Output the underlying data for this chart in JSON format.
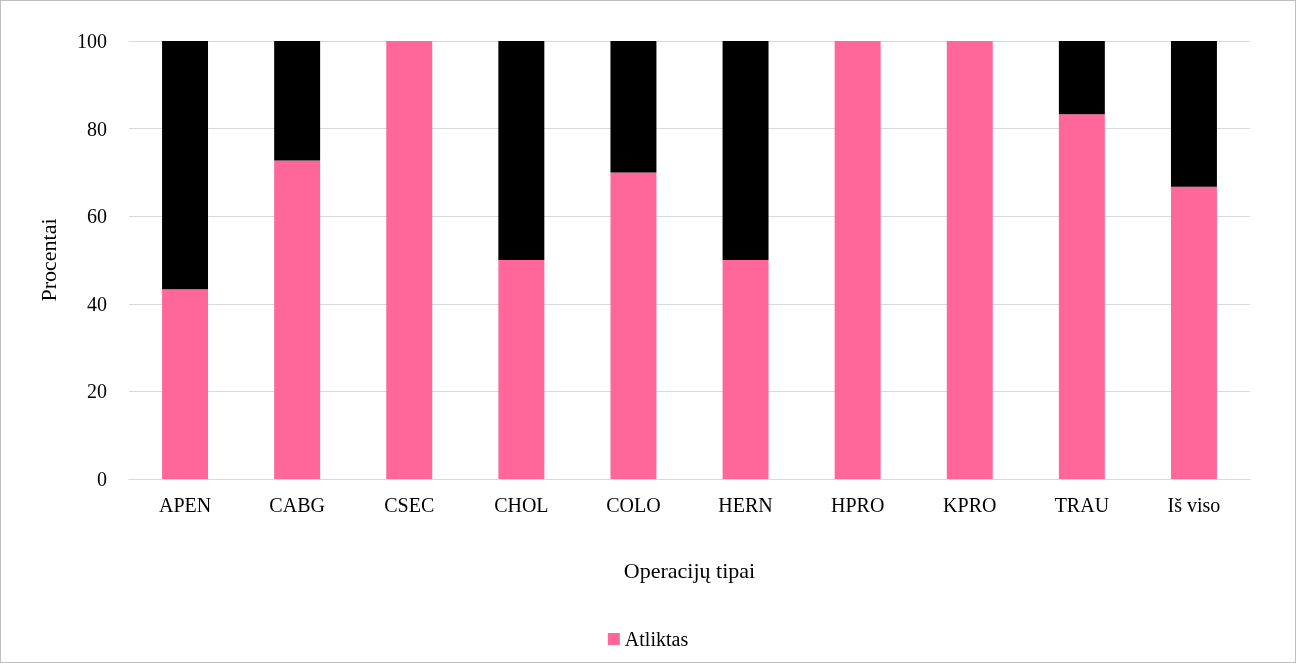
{
  "chart_data": {
    "type": "bar",
    "stacked": true,
    "xlabel": "Operacijų tipai",
    "ylabel": "Procentai",
    "categories": [
      "APEN",
      "CABG",
      "CSEC",
      "CHOL",
      "COLO",
      "HERN",
      "HPRO",
      "KPRO",
      "TRAU",
      "Iš viso"
    ],
    "series": [
      {
        "name": "Atliktas",
        "color": "#ff6699",
        "values": [
          43.3,
          72.7,
          100,
          50,
          70,
          50,
          100,
          100,
          83.3,
          66.7
        ]
      },
      {
        "color": "#000000",
        "values": [
          56.7,
          27.3,
          0,
          50,
          30,
          50,
          0,
          0,
          16.7,
          33.3
        ]
      }
    ],
    "ylim": [
      0,
      100
    ],
    "yticks": [
      0,
      20,
      40,
      60,
      80,
      100
    ],
    "grid": "y",
    "legend": "bottom"
  }
}
